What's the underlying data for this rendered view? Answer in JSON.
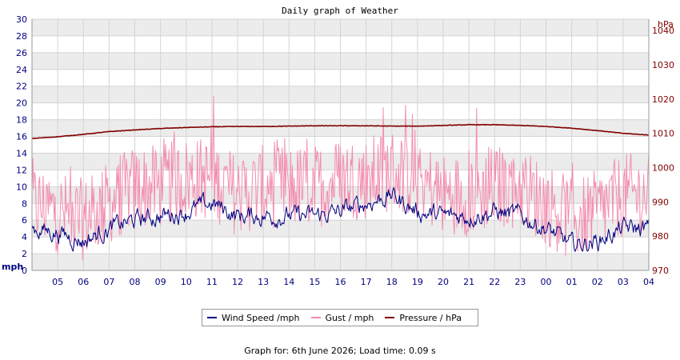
{
  "chart_data": {
    "type": "line",
    "title": "Daily graph of Weather",
    "left_axis": {
      "unit": "mph",
      "ylim": [
        0,
        30
      ],
      "ticks": [
        "0",
        "2",
        "4",
        "6",
        "8",
        "10",
        "12",
        "14",
        "16",
        "18",
        "20",
        "22",
        "24",
        "26",
        "28",
        "30"
      ]
    },
    "right_axis": {
      "unit": "hPa",
      "ylim": [
        970,
        1043.3
      ],
      "ticks": [
        "970",
        "980",
        "990",
        "1000",
        "1010",
        "1020",
        "1030",
        "1040"
      ]
    },
    "x_tick_labels": [
      "05",
      "06",
      "07",
      "08",
      "09",
      "10",
      "11",
      "12",
      "13",
      "14",
      "15",
      "16",
      "17",
      "18",
      "19",
      "20",
      "21",
      "22",
      "23",
      "00",
      "01",
      "02",
      "03",
      "04"
    ],
    "x_range_hours": [
      0,
      24
    ],
    "grid": true,
    "legend_position": "bottom-center",
    "series": [
      {
        "name": "Wind Speed /mph",
        "color": "#000080",
        "axis": "left",
        "hours": [
          0,
          1,
          2,
          3,
          4,
          5,
          6,
          7,
          8,
          9,
          10,
          11,
          12,
          13,
          14,
          15,
          16,
          17,
          18,
          19,
          20,
          21,
          22,
          23,
          24
        ],
        "values": [
          5,
          4.5,
          3.5,
          5,
          6,
          6.5,
          7,
          8,
          6.5,
          6.5,
          6.5,
          6.5,
          7,
          8,
          9,
          7,
          6.5,
          6.5,
          7,
          6.5,
          5,
          3,
          3.5,
          5,
          5
        ]
      },
      {
        "name": "Gust / mph",
        "color": "#f38db0",
        "axis": "left",
        "hours": [
          0,
          1,
          2,
          3,
          4,
          5,
          6,
          7,
          8,
          9,
          10,
          11,
          12,
          13,
          14,
          15,
          16,
          17,
          18,
          19,
          20,
          21,
          22,
          23,
          24
        ],
        "values": [
          8,
          7,
          6,
          8,
          10,
          10,
          11,
          11,
          9,
          10,
          10,
          10,
          11,
          11,
          12,
          11,
          9,
          9,
          10,
          10,
          8,
          6,
          7,
          9,
          9
        ]
      },
      {
        "name": "Pressure / hPa",
        "color": "#800000",
        "axis": "right",
        "hours": [
          0,
          1,
          2,
          3,
          4,
          5,
          6,
          7,
          8,
          9,
          10,
          11,
          12,
          13,
          14,
          15,
          16,
          17,
          18,
          19,
          20,
          21,
          22,
          23,
          24
        ],
        "values": [
          1008.5,
          1009,
          1009.7,
          1010.5,
          1011,
          1011.4,
          1011.7,
          1011.9,
          1012,
          1012,
          1012.1,
          1012.2,
          1012.2,
          1012.2,
          1012.1,
          1012.1,
          1012.3,
          1012.5,
          1012.5,
          1012.3,
          1012,
          1011.5,
          1010.8,
          1010,
          1009.5
        ]
      }
    ]
  },
  "legend": {
    "items": [
      {
        "label": "Wind Speed /mph",
        "color": "#000080"
      },
      {
        "label": "Gust / mph",
        "color": "#f38db0"
      },
      {
        "label": "Pressure / hPa",
        "color": "#800000"
      }
    ]
  },
  "footer": {
    "text": "Graph for: 6th June 2026; Load time: 0.09 s"
  }
}
